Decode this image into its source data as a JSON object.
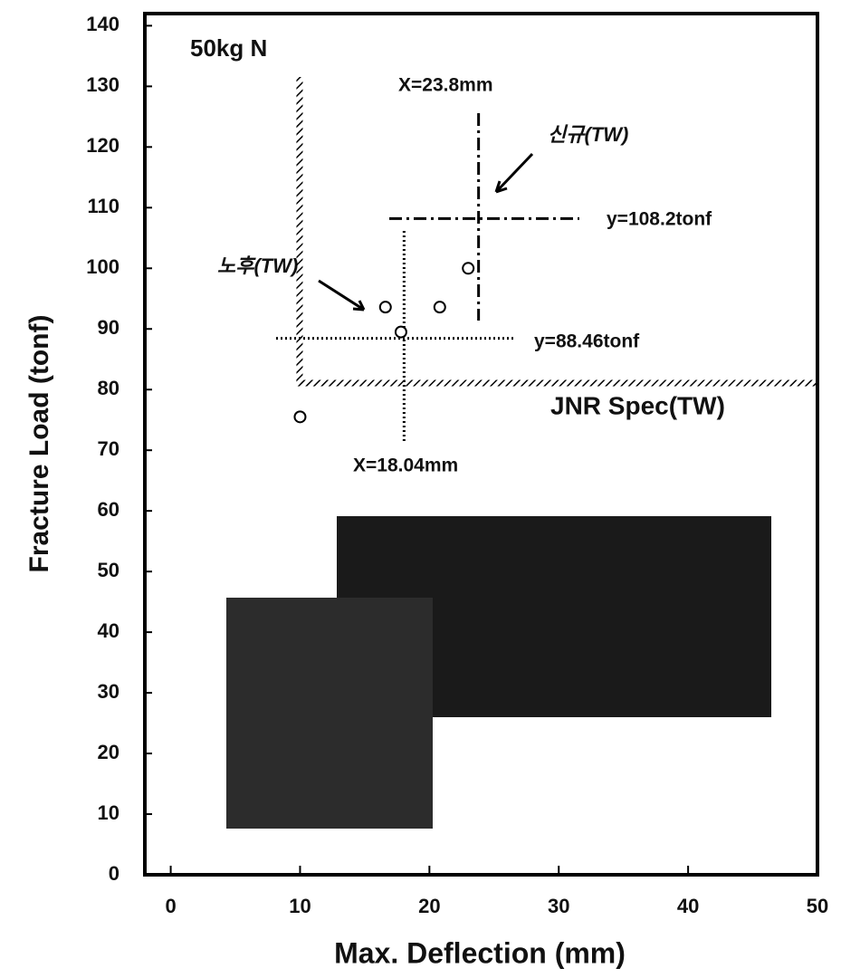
{
  "chart_data": {
    "type": "scatter",
    "title": "50kg N",
    "xlabel": "Max. Deflection (mm)",
    "ylabel": "Fracture Load (tonf)",
    "x": [
      10,
      16.6,
      17.8,
      20.8,
      23
    ],
    "y": [
      75.5,
      93.6,
      89.5,
      93.6,
      100
    ],
    "color": "#000000",
    "xlim": [
      -2,
      50
    ],
    "xticks": [
      0,
      10,
      20,
      30,
      40,
      50
    ],
    "ylim": [
      0,
      142
    ],
    "yticks": [
      0,
      10,
      20,
      30,
      40,
      50,
      60,
      70,
      80,
      90,
      100,
      110,
      120,
      130,
      140
    ],
    "spec": {
      "label": "JNR Spec(TW)",
      "x": 10,
      "y": 81
    },
    "reference_lines": [
      {
        "label": "X=23.8mm",
        "axis": "x",
        "value": 23.8
      },
      {
        "label": "y=108.2tonf",
        "axis": "y",
        "value": 108.2
      },
      {
        "label": "X=18.04mm",
        "axis": "x",
        "value": 18.04
      },
      {
        "label": "y=88.46tonf",
        "axis": "y",
        "value": 88.46
      }
    ],
    "annotations": [
      "신규(TW)",
      "노후(TW)"
    ]
  }
}
